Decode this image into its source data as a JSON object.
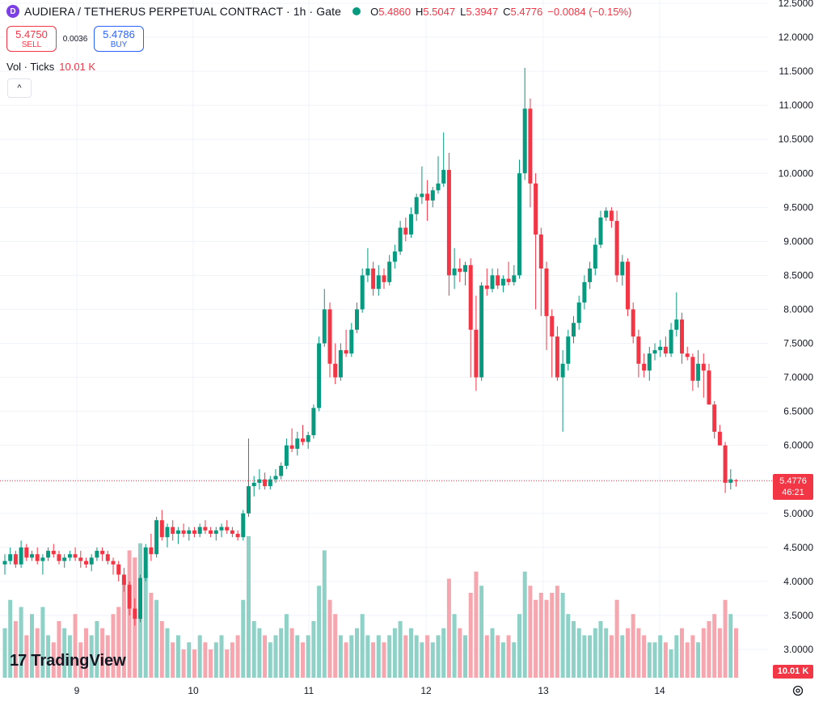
{
  "header": {
    "symbol_icon_letter": "D",
    "title": "AUDIERA / TETHERUS PERPETUAL CONTRACT · 1h · Gate",
    "ohlc": {
      "o_label": "O",
      "o": "5.4860",
      "h_label": "H",
      "h": "5.5047",
      "l_label": "L",
      "l": "5.3947",
      "c_label": "C",
      "c": "5.4776",
      "change": "−0.0084 (−0.15%)"
    }
  },
  "trade": {
    "sell_price": "5.4750",
    "sell_label": "SELL",
    "spread": "0.0036",
    "buy_price": "5.4786",
    "buy_label": "BUY"
  },
  "volume_indicator": {
    "label": "Vol · Ticks",
    "value": "10.01 K"
  },
  "last_price": {
    "price": "5.4776",
    "countdown": "46:21"
  },
  "volume_tag": "10.01 K",
  "branding": "TradingView",
  "colors": {
    "up": "#089981",
    "down": "#f23645",
    "up_vol": "#8fd1c6",
    "down_vol": "#f5a6ae",
    "grid": "#f0f3fa",
    "text": "#131722"
  },
  "chart_data": {
    "type": "candlestick",
    "timeframe": "1h",
    "price_axis": {
      "ticks": [
        "12.5000",
        "12.0000",
        "11.5000",
        "11.0000",
        "10.5000",
        "10.0000",
        "9.5000",
        "9.0000",
        "8.5000",
        "8.0000",
        "7.5000",
        "7.0000",
        "6.5000",
        "6.0000",
        "5.5000",
        "5.0000",
        "4.5000",
        "4.0000",
        "3.5000",
        "3.0000"
      ],
      "range": [
        2.75,
        12.5
      ]
    },
    "time_axis": {
      "labels": [
        "9",
        "10",
        "11",
        "12",
        "13",
        "14"
      ]
    },
    "last_close": 5.4776,
    "candles_ohlc": [
      [
        4.25,
        4.4,
        4.1,
        4.3
      ],
      [
        4.3,
        4.5,
        4.25,
        4.4
      ],
      [
        4.4,
        4.45,
        4.2,
        4.25
      ],
      [
        4.25,
        4.6,
        4.2,
        4.5
      ],
      [
        4.5,
        4.55,
        4.3,
        4.35
      ],
      [
        4.35,
        4.45,
        4.3,
        4.4
      ],
      [
        4.4,
        4.5,
        4.25,
        4.3
      ],
      [
        4.3,
        4.4,
        4.1,
        4.35
      ],
      [
        4.35,
        4.5,
        4.3,
        4.45
      ],
      [
        4.45,
        4.55,
        4.35,
        4.4
      ],
      [
        4.4,
        4.45,
        4.25,
        4.3
      ],
      [
        4.3,
        4.4,
        4.2,
        4.35
      ],
      [
        4.35,
        4.45,
        4.3,
        4.4
      ],
      [
        4.4,
        4.5,
        4.3,
        4.35
      ],
      [
        4.35,
        4.45,
        4.2,
        4.3
      ],
      [
        4.3,
        4.35,
        4.2,
        4.25
      ],
      [
        4.25,
        4.4,
        4.15,
        4.35
      ],
      [
        4.35,
        4.5,
        4.3,
        4.45
      ],
      [
        4.45,
        4.5,
        4.3,
        4.4
      ],
      [
        4.4,
        4.45,
        4.25,
        4.3
      ],
      [
        4.3,
        4.35,
        4.1,
        4.25
      ],
      [
        4.25,
        4.3,
        4.0,
        4.1
      ],
      [
        4.1,
        4.2,
        3.85,
        3.95
      ],
      [
        3.95,
        4.0,
        3.5,
        3.6
      ],
      [
        3.6,
        3.75,
        3.35,
        3.45
      ],
      [
        3.45,
        4.1,
        3.4,
        4.05
      ],
      [
        4.05,
        4.55,
        4.0,
        4.5
      ],
      [
        4.5,
        4.7,
        4.3,
        4.4
      ],
      [
        4.4,
        4.95,
        4.35,
        4.9
      ],
      [
        4.9,
        5.05,
        4.6,
        4.65
      ],
      [
        4.65,
        4.85,
        4.5,
        4.8
      ],
      [
        4.8,
        4.9,
        4.6,
        4.7
      ],
      [
        4.7,
        4.8,
        4.55,
        4.75
      ],
      [
        4.75,
        4.85,
        4.65,
        4.7
      ],
      [
        4.7,
        4.8,
        4.6,
        4.75
      ],
      [
        4.75,
        4.8,
        4.65,
        4.7
      ],
      [
        4.7,
        4.85,
        4.65,
        4.8
      ],
      [
        4.8,
        4.9,
        4.7,
        4.75
      ],
      [
        4.75,
        4.8,
        4.65,
        4.7
      ],
      [
        4.7,
        4.8,
        4.6,
        4.75
      ],
      [
        4.75,
        4.85,
        4.65,
        4.8
      ],
      [
        4.8,
        4.9,
        4.7,
        4.75
      ],
      [
        4.75,
        4.8,
        4.65,
        4.7
      ],
      [
        4.7,
        4.75,
        4.6,
        4.65
      ],
      [
        4.65,
        5.05,
        4.6,
        5.0
      ],
      [
        5.0,
        6.1,
        4.95,
        5.4
      ],
      [
        5.4,
        5.55,
        5.25,
        5.45
      ],
      [
        5.45,
        5.65,
        5.35,
        5.5
      ],
      [
        5.5,
        5.6,
        5.35,
        5.4
      ],
      [
        5.4,
        5.55,
        5.35,
        5.5
      ],
      [
        5.5,
        5.65,
        5.45,
        5.55
      ],
      [
        5.55,
        5.75,
        5.5,
        5.7
      ],
      [
        5.7,
        6.1,
        5.65,
        6.0
      ],
      [
        6.0,
        6.25,
        5.9,
        5.95
      ],
      [
        5.95,
        6.2,
        5.85,
        6.1
      ],
      [
        6.1,
        6.3,
        6.0,
        6.05
      ],
      [
        6.05,
        6.2,
        5.95,
        6.15
      ],
      [
        6.15,
        6.6,
        6.1,
        6.55
      ],
      [
        6.55,
        7.6,
        6.5,
        7.5
      ],
      [
        7.5,
        8.3,
        7.45,
        8.0
      ],
      [
        8.0,
        8.1,
        7.0,
        7.2
      ],
      [
        7.2,
        7.5,
        6.9,
        7.0
      ],
      [
        7.0,
        7.5,
        6.95,
        7.4
      ],
      [
        7.4,
        7.7,
        7.3,
        7.35
      ],
      [
        7.35,
        7.8,
        7.3,
        7.7
      ],
      [
        7.7,
        8.1,
        7.65,
        8.0
      ],
      [
        8.0,
        8.6,
        7.95,
        8.5
      ],
      [
        8.5,
        8.9,
        8.4,
        8.6
      ],
      [
        8.6,
        8.7,
        8.2,
        8.3
      ],
      [
        8.3,
        8.65,
        8.2,
        8.5
      ],
      [
        8.5,
        8.6,
        8.3,
        8.4
      ],
      [
        8.4,
        8.8,
        8.35,
        8.7
      ],
      [
        8.7,
        8.95,
        8.6,
        8.85
      ],
      [
        8.85,
        9.3,
        8.8,
        9.2
      ],
      [
        9.2,
        9.35,
        9.0,
        9.1
      ],
      [
        9.1,
        9.5,
        9.05,
        9.4
      ],
      [
        9.4,
        9.7,
        9.3,
        9.65
      ],
      [
        9.65,
        10.1,
        9.55,
        9.7
      ],
      [
        9.7,
        9.9,
        9.3,
        9.6
      ],
      [
        9.6,
        9.8,
        9.5,
        9.75
      ],
      [
        9.75,
        10.25,
        9.7,
        9.85
      ],
      [
        9.85,
        10.6,
        9.8,
        10.05
      ],
      [
        10.05,
        10.3,
        8.2,
        8.5
      ],
      [
        8.5,
        8.9,
        8.3,
        8.6
      ],
      [
        8.6,
        8.75,
        8.4,
        8.55
      ],
      [
        8.55,
        8.7,
        8.35,
        8.65
      ],
      [
        8.65,
        8.75,
        7.0,
        7.7
      ],
      [
        7.7,
        8.2,
        6.8,
        7.0
      ],
      [
        7.0,
        8.4,
        6.95,
        8.35
      ],
      [
        8.35,
        8.6,
        8.2,
        8.3
      ],
      [
        8.3,
        8.6,
        8.25,
        8.5
      ],
      [
        8.5,
        8.6,
        8.3,
        8.35
      ],
      [
        8.35,
        8.5,
        8.25,
        8.45
      ],
      [
        8.45,
        8.7,
        8.35,
        8.4
      ],
      [
        8.4,
        8.65,
        8.35,
        8.5
      ],
      [
        8.5,
        10.2,
        8.45,
        10.0
      ],
      [
        10.0,
        11.55,
        9.9,
        10.95
      ],
      [
        10.95,
        11.1,
        9.5,
        9.85
      ],
      [
        9.85,
        10.0,
        8.0,
        9.1
      ],
      [
        9.1,
        9.2,
        7.9,
        8.6
      ],
      [
        8.6,
        8.7,
        7.4,
        7.9
      ],
      [
        7.9,
        8.0,
        7.0,
        7.6
      ],
      [
        7.6,
        7.75,
        6.95,
        7.0
      ],
      [
        7.0,
        7.4,
        6.2,
        7.2
      ],
      [
        7.2,
        7.7,
        7.1,
        7.6
      ],
      [
        7.6,
        7.9,
        7.5,
        7.8
      ],
      [
        7.8,
        8.2,
        7.7,
        8.1
      ],
      [
        8.1,
        8.5,
        8.0,
        8.4
      ],
      [
        8.4,
        8.7,
        8.3,
        8.6
      ],
      [
        8.6,
        9.05,
        8.5,
        8.95
      ],
      [
        8.95,
        9.45,
        8.9,
        9.35
      ],
      [
        9.35,
        9.5,
        9.3,
        9.45
      ],
      [
        9.45,
        9.5,
        9.2,
        9.3
      ],
      [
        9.3,
        9.45,
        8.4,
        8.5
      ],
      [
        8.5,
        8.8,
        8.35,
        8.7
      ],
      [
        8.7,
        8.75,
        7.9,
        8.0
      ],
      [
        8.0,
        8.1,
        7.5,
        7.6
      ],
      [
        7.6,
        7.7,
        7.0,
        7.2
      ],
      [
        7.2,
        7.35,
        7.0,
        7.1
      ],
      [
        7.1,
        7.45,
        6.95,
        7.35
      ],
      [
        7.35,
        7.5,
        7.25,
        7.4
      ],
      [
        7.4,
        7.55,
        7.3,
        7.45
      ],
      [
        7.45,
        7.6,
        7.3,
        7.35
      ],
      [
        7.35,
        7.8,
        7.3,
        7.7
      ],
      [
        7.7,
        8.25,
        7.6,
        7.85
      ],
      [
        7.85,
        7.95,
        7.2,
        7.35
      ],
      [
        7.35,
        7.45,
        7.25,
        7.3
      ],
      [
        7.3,
        7.35,
        6.8,
        6.95
      ],
      [
        6.95,
        7.4,
        6.85,
        7.2
      ],
      [
        7.2,
        7.35,
        6.7,
        7.1
      ],
      [
        7.1,
        7.2,
        6.6,
        6.6
      ],
      [
        6.6,
        6.65,
        6.1,
        6.2
      ],
      [
        6.2,
        6.3,
        6.0,
        6.0
      ],
      [
        6.0,
        6.05,
        5.3,
        5.45
      ],
      [
        5.45,
        5.65,
        5.35,
        5.5
      ],
      [
        5.486,
        5.5047,
        5.3947,
        5.4776
      ]
    ],
    "volumes_relative": [
      0.35,
      0.55,
      0.4,
      0.5,
      0.3,
      0.45,
      0.35,
      0.5,
      0.3,
      0.25,
      0.4,
      0.35,
      0.3,
      0.45,
      0.25,
      0.35,
      0.3,
      0.4,
      0.35,
      0.3,
      0.45,
      0.5,
      0.7,
      0.9,
      0.85,
      0.95,
      0.75,
      0.6,
      0.55,
      0.4,
      0.35,
      0.25,
      0.3,
      0.2,
      0.25,
      0.2,
      0.3,
      0.25,
      0.2,
      0.25,
      0.3,
      0.2,
      0.25,
      0.3,
      0.55,
      1.0,
      0.4,
      0.35,
      0.3,
      0.25,
      0.3,
      0.35,
      0.45,
      0.35,
      0.3,
      0.25,
      0.3,
      0.4,
      0.65,
      0.9,
      0.55,
      0.45,
      0.3,
      0.25,
      0.3,
      0.35,
      0.45,
      0.3,
      0.25,
      0.3,
      0.25,
      0.3,
      0.35,
      0.4,
      0.3,
      0.35,
      0.3,
      0.25,
      0.3,
      0.25,
      0.3,
      0.35,
      0.7,
      0.45,
      0.35,
      0.3,
      0.6,
      0.75,
      0.65,
      0.3,
      0.35,
      0.3,
      0.25,
      0.3,
      0.25,
      0.45,
      0.75,
      0.65,
      0.55,
      0.6,
      0.55,
      0.6,
      0.65,
      0.6,
      0.45,
      0.4,
      0.35,
      0.3,
      0.3,
      0.35,
      0.4,
      0.35,
      0.3,
      0.55,
      0.3,
      0.35,
      0.45,
      0.35,
      0.3,
      0.25,
      0.25,
      0.3,
      0.25,
      0.2,
      0.3,
      0.35,
      0.25,
      0.3,
      0.25,
      0.35,
      0.4,
      0.45,
      0.35,
      0.55,
      0.45,
      0.35
    ]
  }
}
